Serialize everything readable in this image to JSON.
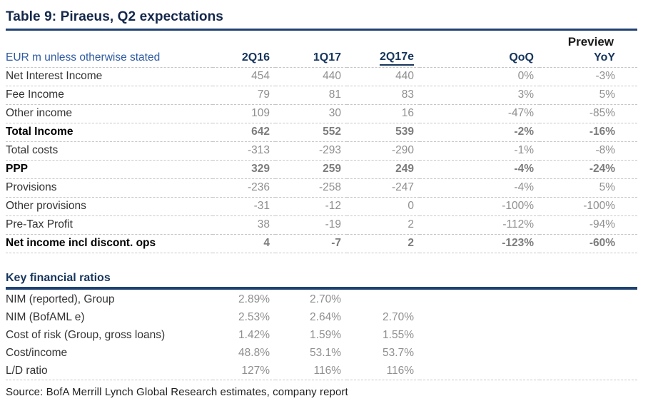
{
  "title": "Table 9: Piraeus, Q2 expectations",
  "main_table": {
    "unit_label": "EUR m unless otherwise stated",
    "preview_label": "Preview",
    "columns": [
      "2Q16",
      "1Q17",
      "2Q17e",
      "QoQ",
      "YoY"
    ],
    "underlined_column": "2Q17e",
    "rows": [
      {
        "label": "Net Interest Income",
        "bold": false,
        "values": [
          "454",
          "440",
          "440",
          "0%",
          "-3%"
        ]
      },
      {
        "label": "Fee Income",
        "bold": false,
        "values": [
          "79",
          "81",
          "83",
          "3%",
          "5%"
        ]
      },
      {
        "label": "Other income",
        "bold": false,
        "values": [
          "109",
          "30",
          "16",
          "-47%",
          "-85%"
        ]
      },
      {
        "label": "Total Income",
        "bold": true,
        "values": [
          "642",
          "552",
          "539",
          "-2%",
          "-16%"
        ]
      },
      {
        "label": "Total costs",
        "bold": false,
        "values": [
          "-313",
          "-293",
          "-290",
          "-1%",
          "-8%"
        ]
      },
      {
        "label": "PPP",
        "bold": true,
        "values": [
          "329",
          "259",
          "249",
          "-4%",
          "-24%"
        ]
      },
      {
        "label": "Provisions",
        "bold": false,
        "values": [
          "-236",
          "-258",
          "-247",
          "-4%",
          "5%"
        ]
      },
      {
        "label": "Other provisions",
        "bold": false,
        "values": [
          "-31",
          "-12",
          "0",
          "-100%",
          "-100%"
        ]
      },
      {
        "label": "Pre-Tax Profit",
        "bold": false,
        "values": [
          "38",
          "-19",
          "2",
          "-112%",
          "-94%"
        ]
      },
      {
        "label": "Net income incl discont. ops",
        "bold": true,
        "values": [
          "4",
          "-7",
          "2",
          "-123%",
          "-60%"
        ]
      }
    ]
  },
  "ratios_table": {
    "heading": "Key financial ratios",
    "rows": [
      {
        "label": "NIM (reported), Group",
        "bold": false,
        "values": [
          "2.89%",
          "2.70%",
          "",
          "",
          ""
        ]
      },
      {
        "label": "NIM (BofAML e)",
        "bold": false,
        "values": [
          "2.53%",
          "2.64%",
          "2.70%",
          "",
          ""
        ]
      },
      {
        "label": "Cost of risk (Group, gross loans)",
        "bold": false,
        "values": [
          "1.42%",
          "1.59%",
          "1.55%",
          "",
          ""
        ]
      },
      {
        "label": "Cost/income",
        "bold": false,
        "values": [
          "48.8%",
          "53.1%",
          "53.7%",
          "",
          ""
        ]
      },
      {
        "label": "L/D ratio",
        "bold": false,
        "values": [
          "127%",
          "116%",
          "116%",
          "",
          ""
        ]
      }
    ]
  },
  "source": "Source: BofA Merrill Lynch Global Research estimates, company report",
  "colors": {
    "navy": "#17365D",
    "rule_navy": "#1F4272",
    "header_blue": "#2F5BA2",
    "title_dark": "#14284B",
    "label_dark": "#333333",
    "value_gray": "#8F8F8F",
    "value_gray_bold": "#7C7C7C",
    "preview_black": "#1A1A1A",
    "dash": "#C6C6C6"
  }
}
